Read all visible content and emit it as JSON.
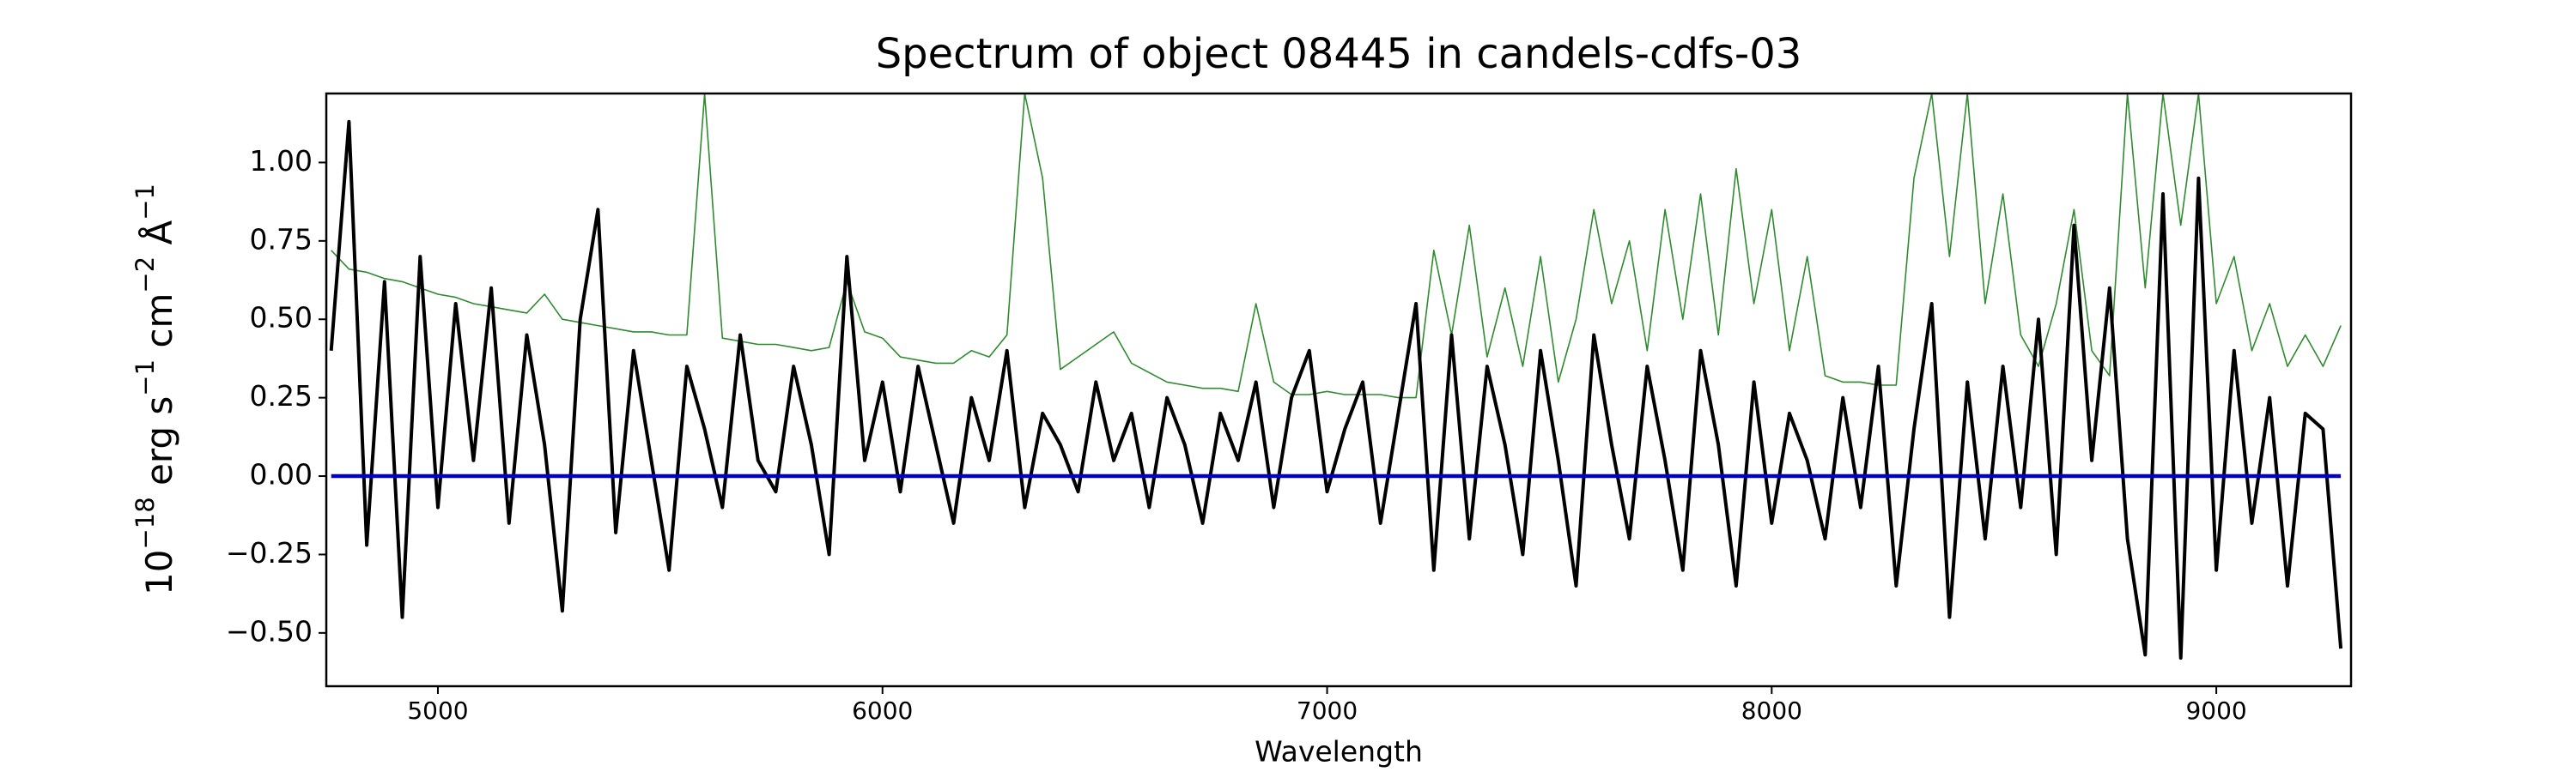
{
  "chart_data": {
    "type": "line",
    "title": "Spectrum of object 08445 in candels-cdfs-03",
    "xlabel": "Wavelength",
    "ylabel": [
      {
        "text": "10"
      },
      {
        "text": "−18",
        "sup": true
      },
      {
        "text": " erg s"
      },
      {
        "text": "−1",
        "sup": true
      },
      {
        "text": " cm"
      },
      {
        "text": "−2",
        "sup": true
      },
      {
        "text": " Å"
      },
      {
        "text": "−1",
        "sup": true
      }
    ],
    "xlim": [
      4749,
      9303
    ],
    "ylim": [
      -0.67,
      1.22
    ],
    "xticks": [
      5000,
      6000,
      7000,
      8000,
      9000
    ],
    "yticks": [
      {
        "value": -0.5,
        "label": "−0.50"
      },
      {
        "value": -0.25,
        "label": "−0.25"
      },
      {
        "value": 0,
        "label": "0.00"
      },
      {
        "value": 0.25,
        "label": "0.25"
      },
      {
        "value": 0.5,
        "label": "0.50"
      },
      {
        "value": 0.75,
        "label": "0.75"
      },
      {
        "value": 1.0,
        "label": "1.00"
      }
    ],
    "grid": false,
    "x": [
      4760,
      4800,
      4840,
      4880,
      4920,
      4960,
      5000,
      5040,
      5080,
      5120,
      5160,
      5200,
      5240,
      5280,
      5320,
      5360,
      5400,
      5440,
      5480,
      5520,
      5560,
      5600,
      5640,
      5680,
      5720,
      5760,
      5800,
      5840,
      5880,
      5920,
      5960,
      6000,
      6040,
      6080,
      6120,
      6160,
      6200,
      6240,
      6280,
      6320,
      6360,
      6400,
      6440,
      6480,
      6520,
      6560,
      6600,
      6640,
      6680,
      6720,
      6760,
      6800,
      6840,
      6880,
      6920,
      6960,
      7000,
      7040,
      7080,
      7120,
      7160,
      7200,
      7240,
      7280,
      7320,
      7360,
      7400,
      7440,
      7480,
      7520,
      7560,
      7600,
      7640,
      7680,
      7720,
      7760,
      7800,
      7840,
      7880,
      7920,
      7960,
      8000,
      8040,
      8080,
      8120,
      8160,
      8200,
      8240,
      8280,
      8320,
      8360,
      8400,
      8440,
      8480,
      8520,
      8560,
      8600,
      8640,
      8680,
      8720,
      8760,
      8800,
      8840,
      8880,
      8920,
      8960,
      9000,
      9040,
      9080,
      9120,
      9160,
      9200,
      9240,
      9280
    ],
    "series": [
      {
        "color": "#2e8b2e",
        "width": 1.6,
        "values": [
          0.72,
          0.66,
          0.65,
          0.63,
          0.62,
          0.6,
          0.58,
          0.57,
          0.55,
          0.54,
          0.53,
          0.52,
          0.58,
          0.5,
          0.49,
          0.48,
          0.47,
          0.46,
          0.46,
          0.45,
          0.45,
          1.22,
          0.44,
          0.43,
          0.42,
          0.42,
          0.41,
          0.4,
          0.41,
          0.62,
          0.46,
          0.44,
          0.38,
          0.37,
          0.36,
          0.36,
          0.4,
          0.38,
          0.45,
          1.22,
          0.95,
          0.34,
          0.38,
          0.42,
          0.46,
          0.36,
          0.33,
          0.3,
          0.29,
          0.28,
          0.28,
          0.27,
          0.55,
          0.3,
          0.26,
          0.26,
          0.27,
          0.26,
          0.26,
          0.26,
          0.25,
          0.25,
          0.72,
          0.45,
          0.8,
          0.38,
          0.6,
          0.35,
          0.7,
          0.3,
          0.5,
          0.85,
          0.55,
          0.75,
          0.4,
          0.85,
          0.5,
          0.9,
          0.45,
          0.98,
          0.55,
          0.85,
          0.4,
          0.7,
          0.32,
          0.3,
          0.3,
          0.29,
          0.29,
          0.95,
          1.22,
          0.7,
          1.22,
          0.55,
          0.9,
          0.45,
          0.35,
          0.55,
          0.85,
          0.4,
          0.32,
          1.22,
          0.6,
          1.22,
          0.8,
          1.22,
          0.55,
          0.7,
          0.4,
          0.55,
          0.35,
          0.45,
          0.35,
          0.48
        ]
      },
      {
        "color": "#000000",
        "width": 4,
        "values": [
          0.4,
          1.13,
          -0.22,
          0.62,
          -0.45,
          0.7,
          -0.1,
          0.55,
          0.05,
          0.6,
          -0.15,
          0.45,
          0.1,
          -0.43,
          0.5,
          0.85,
          -0.18,
          0.4,
          0.05,
          -0.3,
          0.35,
          0.15,
          -0.1,
          0.45,
          0.05,
          -0.05,
          0.35,
          0.1,
          -0.25,
          0.7,
          0.05,
          0.3,
          -0.05,
          0.35,
          0.1,
          -0.15,
          0.25,
          0.05,
          0.4,
          -0.1,
          0.2,
          0.1,
          -0.05,
          0.3,
          0.05,
          0.2,
          -0.1,
          0.25,
          0.1,
          -0.15,
          0.2,
          0.05,
          0.3,
          -0.1,
          0.25,
          0.4,
          -0.05,
          0.15,
          0.3,
          -0.15,
          0.2,
          0.55,
          -0.3,
          0.45,
          -0.2,
          0.35,
          0.1,
          -0.25,
          0.4,
          0.05,
          -0.35,
          0.45,
          0.1,
          -0.2,
          0.35,
          0.05,
          -0.3,
          0.4,
          0.1,
          -0.35,
          0.3,
          -0.15,
          0.2,
          0.05,
          -0.2,
          0.25,
          -0.1,
          0.35,
          -0.35,
          0.15,
          0.55,
          -0.45,
          0.3,
          -0.2,
          0.35,
          -0.1,
          0.5,
          -0.25,
          0.8,
          0.05,
          0.6,
          -0.2,
          -0.57,
          0.9,
          -0.58,
          0.95,
          -0.3,
          0.4,
          -0.15,
          0.25,
          -0.35,
          0.2,
          0.15,
          -0.55
        ]
      },
      {
        "color": "#0000cc",
        "width": 4.5,
        "values": [
          0,
          0,
          0,
          0,
          0,
          0,
          0,
          0,
          0,
          0,
          0,
          0,
          0,
          0,
          0,
          0,
          0,
          0,
          0,
          0,
          0,
          0,
          0,
          0,
          0,
          0,
          0,
          0,
          0,
          0,
          0,
          0,
          0,
          0,
          0,
          0,
          0,
          0,
          0,
          0,
          0,
          0,
          0,
          0,
          0,
          0,
          0,
          0,
          0,
          0,
          0,
          0,
          0,
          0,
          0,
          0,
          0,
          0,
          0,
          0,
          0,
          0,
          0,
          0,
          0,
          0,
          0,
          0,
          0,
          0,
          0,
          0,
          0,
          0,
          0,
          0,
          0,
          0,
          0,
          0,
          0,
          0,
          0,
          0,
          0,
          0,
          0,
          0,
          0,
          0,
          0,
          0,
          0,
          0,
          0,
          0,
          0,
          0,
          0,
          0,
          0,
          0,
          0,
          0,
          0,
          0,
          0,
          0,
          0,
          0,
          0,
          0,
          0,
          0
        ]
      }
    ]
  }
}
